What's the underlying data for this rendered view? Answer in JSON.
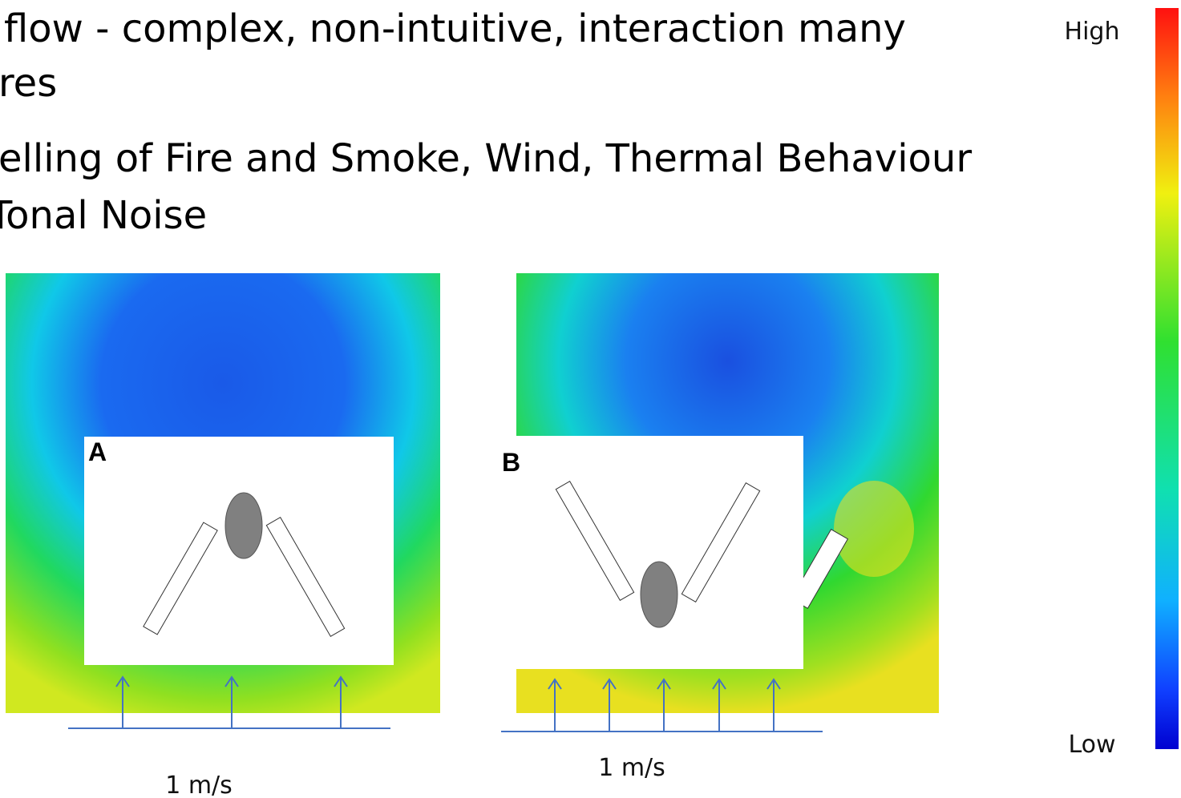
{
  "slide": {
    "bullets": [
      "flow - complex, non-intuitive, interaction many",
      "res",
      "elling of Fire and Smoke, Wind, Thermal Behaviour",
      "Tonal Noise"
    ],
    "legend": {
      "high": "High",
      "low": "Low"
    },
    "panels": [
      {
        "label": "A",
        "scale": "1 m/s"
      },
      {
        "label": "B",
        "scale": "1 m/s"
      }
    ]
  }
}
